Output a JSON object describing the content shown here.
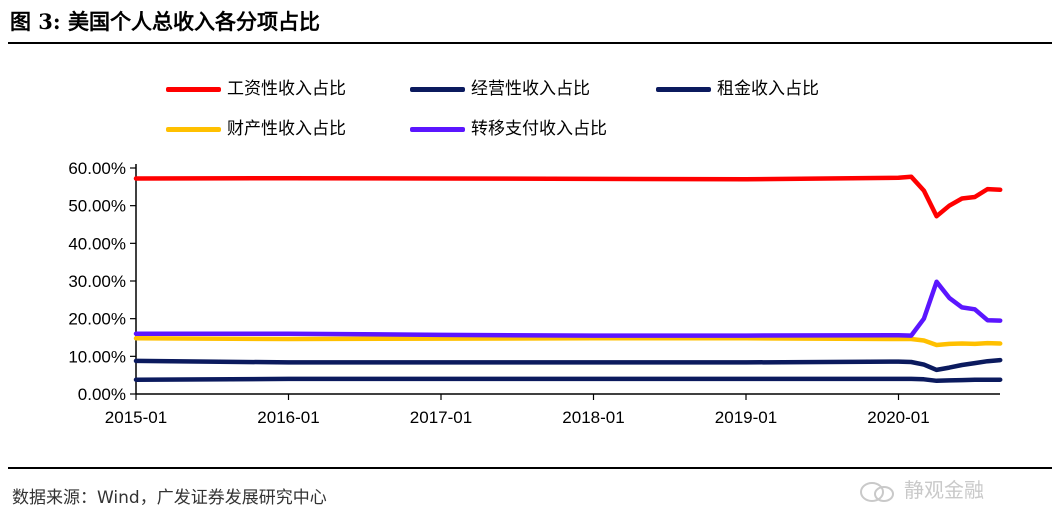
{
  "header": {
    "title": "图 3:  美国个人总收入各分项占比"
  },
  "footer": {
    "source": "数据来源：Wind，广发证券发展研究中心",
    "watermark": "静观金融"
  },
  "chart_data": {
    "type": "line",
    "title": "",
    "xlabel": "",
    "ylabel": "",
    "x_ticks": [
      "2015-01",
      "2016-01",
      "2017-01",
      "2018-01",
      "2019-01",
      "2020-01"
    ],
    "y_ticks": [
      "0.00%",
      "10.00%",
      "20.00%",
      "30.00%",
      "40.00%",
      "50.00%",
      "60.00%"
    ],
    "ylim": [
      0,
      60
    ],
    "x_range": [
      "2015-01",
      "2020-09"
    ],
    "grid": false,
    "legend_position": "top",
    "series": [
      {
        "name": "工资性收入占比",
        "color": "#ff0000",
        "points": [
          [
            "2015-01",
            57.2
          ],
          [
            "2016-01",
            57.3
          ],
          [
            "2017-01",
            57.2
          ],
          [
            "2018-01",
            57.1
          ],
          [
            "2019-01",
            57.0
          ],
          [
            "2020-01",
            57.4
          ],
          [
            "2020-02",
            57.7
          ],
          [
            "2020-03",
            54.0
          ],
          [
            "2020-04",
            47.2
          ],
          [
            "2020-05",
            50.0
          ],
          [
            "2020-06",
            51.9
          ],
          [
            "2020-07",
            52.3
          ],
          [
            "2020-08",
            54.4
          ],
          [
            "2020-09",
            54.2
          ]
        ]
      },
      {
        "name": "经营性收入占比",
        "color": "#0b1a5e",
        "points": [
          [
            "2015-01",
            8.8
          ],
          [
            "2016-01",
            8.4
          ],
          [
            "2017-01",
            8.4
          ],
          [
            "2018-01",
            8.4
          ],
          [
            "2019-01",
            8.4
          ],
          [
            "2020-01",
            8.6
          ],
          [
            "2020-02",
            8.5
          ],
          [
            "2020-03",
            7.8
          ],
          [
            "2020-04",
            6.4
          ],
          [
            "2020-05",
            7.0
          ],
          [
            "2020-06",
            7.7
          ],
          [
            "2020-07",
            8.2
          ],
          [
            "2020-08",
            8.7
          ],
          [
            "2020-09",
            9.0
          ]
        ]
      },
      {
        "name": "租金收入占比",
        "color": "#0b1a5e",
        "points": [
          [
            "2015-01",
            3.8
          ],
          [
            "2016-01",
            4.0
          ],
          [
            "2017-01",
            4.0
          ],
          [
            "2018-01",
            4.0
          ],
          [
            "2019-01",
            4.0
          ],
          [
            "2020-01",
            4.0
          ],
          [
            "2020-02",
            4.0
          ],
          [
            "2020-03",
            3.9
          ],
          [
            "2020-04",
            3.5
          ],
          [
            "2020-05",
            3.6
          ],
          [
            "2020-06",
            3.7
          ],
          [
            "2020-07",
            3.8
          ],
          [
            "2020-08",
            3.8
          ],
          [
            "2020-09",
            3.8
          ]
        ]
      },
      {
        "name": "财产性收入占比",
        "color": "#ffc000",
        "points": [
          [
            "2015-01",
            14.8
          ],
          [
            "2016-01",
            14.6
          ],
          [
            "2017-01",
            14.7
          ],
          [
            "2018-01",
            14.8
          ],
          [
            "2019-01",
            14.8
          ],
          [
            "2020-01",
            14.6
          ],
          [
            "2020-02",
            14.6
          ],
          [
            "2020-03",
            14.2
          ],
          [
            "2020-04",
            13.0
          ],
          [
            "2020-05",
            13.3
          ],
          [
            "2020-06",
            13.4
          ],
          [
            "2020-07",
            13.3
          ],
          [
            "2020-08",
            13.5
          ],
          [
            "2020-09",
            13.4
          ]
        ]
      },
      {
        "name": "转移支付收入占比",
        "color": "#5b16ff",
        "points": [
          [
            "2015-01",
            16.0
          ],
          [
            "2016-01",
            16.0
          ],
          [
            "2017-01",
            15.7
          ],
          [
            "2018-01",
            15.5
          ],
          [
            "2019-01",
            15.5
          ],
          [
            "2020-01",
            15.6
          ],
          [
            "2020-02",
            15.5
          ],
          [
            "2020-03",
            20.0
          ],
          [
            "2020-04",
            29.8
          ],
          [
            "2020-05",
            25.5
          ],
          [
            "2020-06",
            23.0
          ],
          [
            "2020-07",
            22.5
          ],
          [
            "2020-08",
            19.6
          ],
          [
            "2020-09",
            19.5
          ]
        ]
      }
    ]
  }
}
